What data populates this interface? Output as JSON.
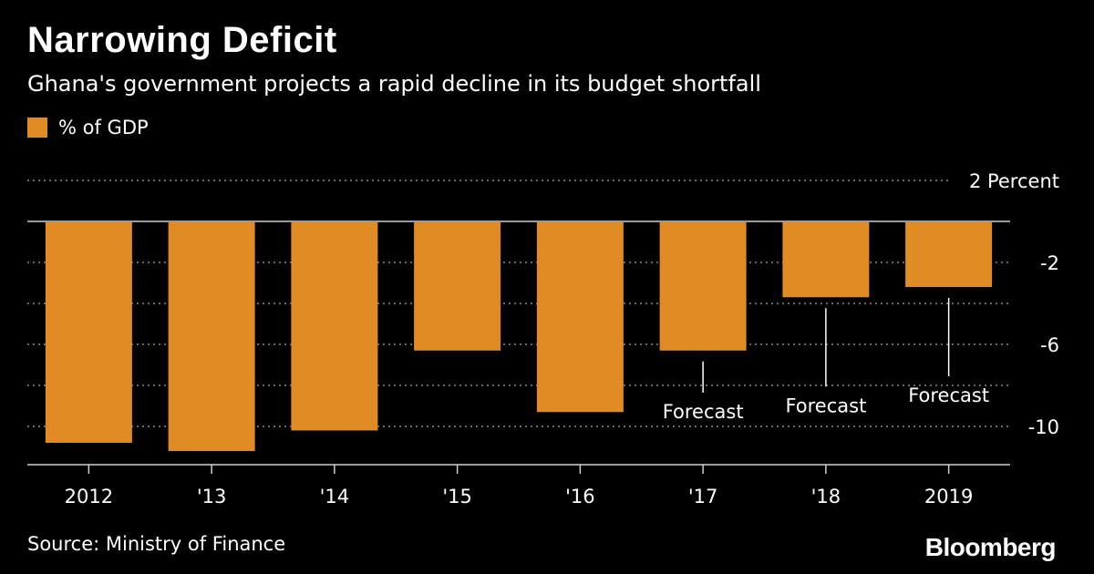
{
  "header": {
    "title": "Narrowing Deficit",
    "subtitle": "Ghana's government projects a rapid decline in its budget shortfall"
  },
  "legend": {
    "label": "% of GDP"
  },
  "footer": {
    "source": "Source: Ministry of Finance",
    "brand": "Bloomberg"
  },
  "colors": {
    "bar": "#e08b24",
    "background": "#000000",
    "grid": "#8a8a8a",
    "text": "#ffffff"
  },
  "chart_data": {
    "type": "bar",
    "categories": [
      "2012",
      "'13",
      "'14",
      "'15",
      "'16",
      "'17",
      "'18",
      "2019"
    ],
    "series": [
      {
        "name": "% of GDP",
        "values": [
          -10.8,
          -11.2,
          -10.2,
          -6.3,
          -9.3,
          -6.3,
          -3.7,
          -3.2
        ]
      }
    ],
    "ylim": [
      -12,
      2
    ],
    "yticks": [
      2,
      -2,
      -6,
      -10
    ],
    "ytick_labels": [
      "2 Percent",
      "-2",
      "-6",
      "-10"
    ],
    "gridlines": [
      2,
      -2,
      -4,
      -6,
      -8,
      -10
    ],
    "annotations": [
      {
        "category": "'17",
        "text": "Forecast"
      },
      {
        "category": "'18",
        "text": "Forecast"
      },
      {
        "category": "2019",
        "text": "Forecast"
      }
    ],
    "grid": true,
    "legend_position": "top-left"
  }
}
